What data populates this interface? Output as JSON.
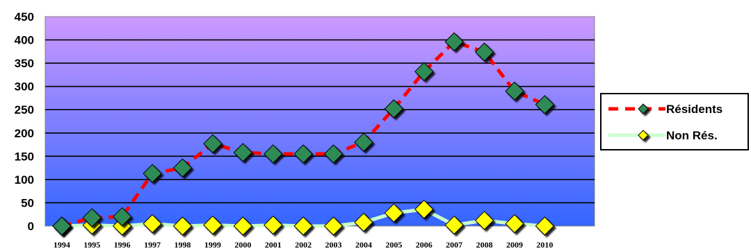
{
  "chart_data": {
    "type": "line",
    "x": [
      "1994",
      "1995",
      "1996",
      "1997",
      "1998",
      "1999",
      "2000",
      "2001",
      "2002",
      "2003",
      "2004",
      "2005",
      "2006",
      "2007",
      "2008",
      "2009",
      "2010"
    ],
    "series": [
      {
        "name": "Résidents",
        "values": [
          0,
          18,
          20,
          113,
          125,
          177,
          158,
          155,
          155,
          155,
          180,
          252,
          332,
          396,
          374,
          290,
          261
        ],
        "line_color": "#ff0000",
        "line_style": "dashed",
        "marker": "diamond",
        "marker_color": "#2e8b57"
      },
      {
        "name": "Non Rés.",
        "values": [
          0,
          2,
          0,
          5,
          0,
          2,
          0,
          2,
          0,
          0,
          8,
          28,
          36,
          2,
          12,
          5,
          0
        ],
        "line_color": "#ccffcc",
        "line_style": "solid",
        "marker": "diamond",
        "marker_color": "#ffff00"
      }
    ],
    "ylim": [
      0,
      450
    ],
    "yticks": [
      "0",
      "50",
      "100",
      "150",
      "200",
      "250",
      "300",
      "350",
      "400",
      "450"
    ],
    "grid": true,
    "legend_position": "right",
    "background_gradient": [
      "#cc99ff",
      "#3366ff"
    ]
  }
}
